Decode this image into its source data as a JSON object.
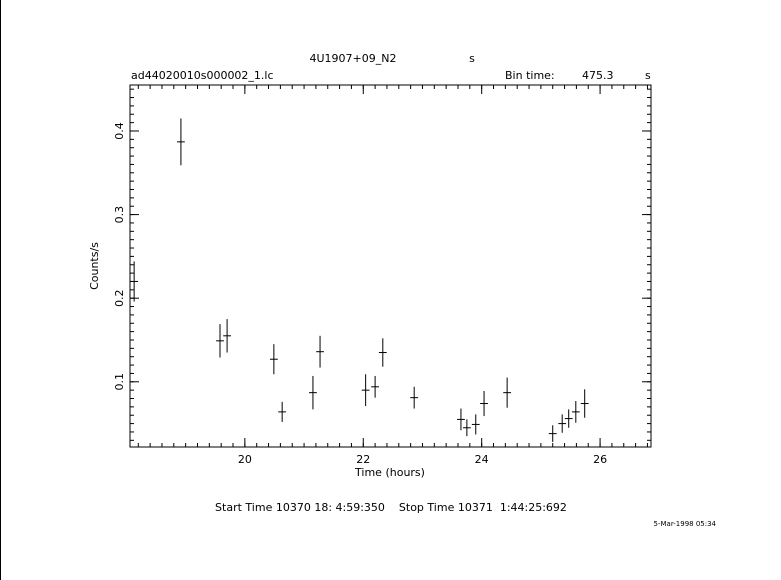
{
  "chart_data": {
    "type": "errorbar",
    "title": "4U1907+09_N2",
    "title_unit": "s",
    "file_name": "ad44020010s000002_1.lc",
    "bin_time_label": "Bin time:",
    "bin_time": "475.3",
    "bin_time_unit": "s",
    "x_label": "Time (hours)",
    "y_label": "Counts/s",
    "footer": "Start Time 10370 18: 4:59:350    Stop Time 10371  1:44:25:692",
    "date": "5-Mar-1998 05:34",
    "x": [
      18.13,
      18.92,
      19.58,
      19.7,
      20.49,
      20.63,
      21.15,
      21.27,
      22.04,
      22.2,
      22.33,
      22.86,
      23.65,
      23.75,
      23.9,
      24.04,
      24.43,
      25.2,
      25.36,
      25.47,
      25.59,
      25.74
    ],
    "values": [
      0.22,
      0.387,
      0.149,
      0.155,
      0.127,
      0.064,
      0.087,
      0.136,
      0.09,
      0.094,
      0.135,
      0.081,
      0.055,
      0.045,
      0.049,
      0.074,
      0.087,
      0.038,
      0.05,
      0.056,
      0.064,
      0.074
    ],
    "yerr": [
      0.024,
      0.028,
      0.02,
      0.02,
      0.018,
      0.012,
      0.02,
      0.019,
      0.019,
      0.013,
      0.017,
      0.013,
      0.013,
      0.01,
      0.012,
      0.015,
      0.018,
      0.01,
      0.011,
      0.011,
      0.013,
      0.017
    ],
    "xerr": 0.066,
    "color": "#000000",
    "xlim": [
      18.06,
      26.86
    ],
    "ylim": [
      0.022,
      0.455
    ],
    "xticks": [
      20,
      22,
      24,
      26
    ],
    "yticks": [
      0.1,
      0.2,
      0.3,
      0.4
    ],
    "xminor_step": 0.2,
    "yminor_step": 0.01
  }
}
